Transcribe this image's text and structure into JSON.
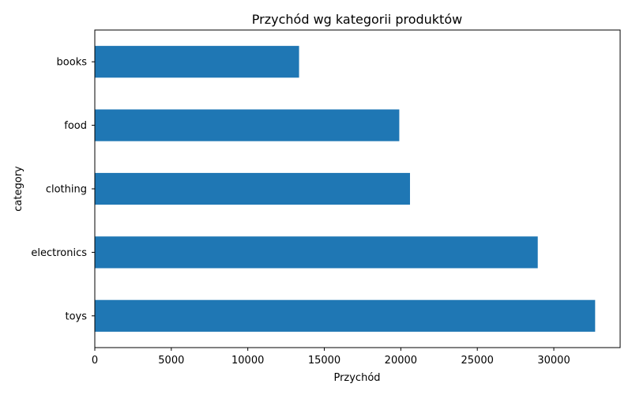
{
  "chart_data": {
    "type": "bar",
    "orientation": "horizontal",
    "title": "Przychód wg kategorii produktów",
    "xlabel": "Przychód",
    "ylabel": "category",
    "categories": [
      "toys",
      "electronics",
      "clothing",
      "food",
      "books"
    ],
    "values": [
      32700,
      28950,
      20600,
      19900,
      13350
    ],
    "xlim": [
      0,
      34335
    ],
    "xticks": [
      0,
      5000,
      10000,
      15000,
      20000,
      25000,
      30000
    ],
    "grid": false,
    "legend": "none",
    "bar_color": "#1f77b4"
  }
}
